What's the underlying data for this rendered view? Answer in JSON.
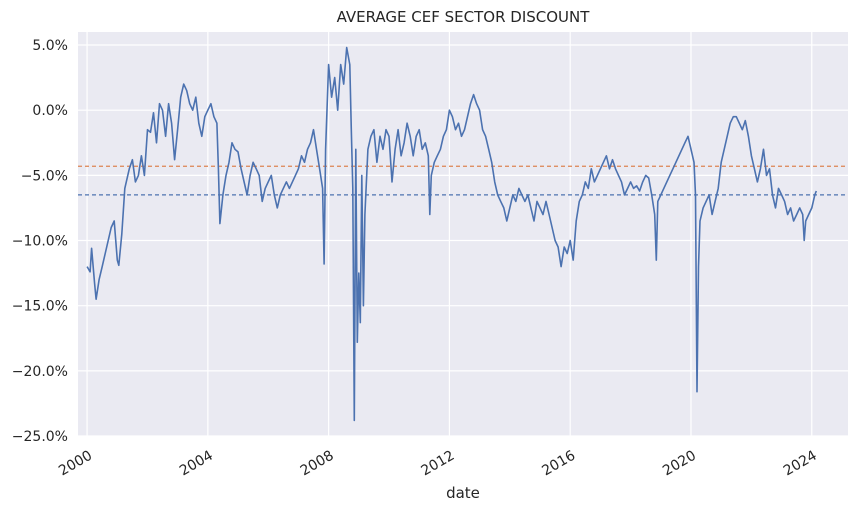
{
  "chart_data": {
    "type": "line",
    "title": "AVERAGE CEF SECTOR DISCOUNT",
    "xlabel": "date",
    "ylabel": "",
    "x_tick_labels": [
      "2000",
      "2004",
      "2008",
      "2012",
      "2016",
      "2020",
      "2024"
    ],
    "y_tick_labels": [
      "5.0%",
      "0.0%",
      "−5.0%",
      "−10.0%",
      "−15.0%",
      "−20.0%",
      "−25.0%"
    ],
    "y_ticks": [
      5,
      0,
      -5,
      -10,
      -15,
      -20,
      -25
    ],
    "xlim": [
      1999.7,
      2025.2
    ],
    "ylim": [
      -25,
      6
    ],
    "grid": true,
    "background_color": "#eaeaf2",
    "series": [
      {
        "color": "#4c72b0",
        "points": [
          [
            2000.0,
            -12.0
          ],
          [
            2000.1,
            -12.4
          ],
          [
            2000.15,
            -10.6
          ],
          [
            2000.25,
            -13.3
          ],
          [
            2000.3,
            -14.5
          ],
          [
            2000.4,
            -13.0
          ],
          [
            2000.5,
            -12.0
          ],
          [
            2000.6,
            -11.0
          ],
          [
            2000.7,
            -10.0
          ],
          [
            2000.8,
            -9.0
          ],
          [
            2000.9,
            -8.5
          ],
          [
            2001.0,
            -11.5
          ],
          [
            2001.05,
            -11.9
          ],
          [
            2001.15,
            -9.5
          ],
          [
            2001.25,
            -6.0
          ],
          [
            2001.4,
            -4.5
          ],
          [
            2001.5,
            -3.8
          ],
          [
            2001.6,
            -5.5
          ],
          [
            2001.7,
            -5.0
          ],
          [
            2001.8,
            -3.5
          ],
          [
            2001.9,
            -5.0
          ],
          [
            2002.0,
            -1.5
          ],
          [
            2002.1,
            -1.7
          ],
          [
            2002.2,
            -0.2
          ],
          [
            2002.3,
            -2.5
          ],
          [
            2002.4,
            0.5
          ],
          [
            2002.5,
            0.0
          ],
          [
            2002.6,
            -2.0
          ],
          [
            2002.7,
            0.5
          ],
          [
            2002.8,
            -1.0
          ],
          [
            2002.9,
            -3.8
          ],
          [
            2003.0,
            -1.5
          ],
          [
            2003.1,
            1.0
          ],
          [
            2003.2,
            2.0
          ],
          [
            2003.3,
            1.5
          ],
          [
            2003.4,
            0.5
          ],
          [
            2003.5,
            0.0
          ],
          [
            2003.6,
            1.0
          ],
          [
            2003.7,
            -1.0
          ],
          [
            2003.8,
            -2.0
          ],
          [
            2003.9,
            -0.5
          ],
          [
            2004.0,
            0.0
          ],
          [
            2004.1,
            0.5
          ],
          [
            2004.2,
            -0.5
          ],
          [
            2004.3,
            -1.0
          ],
          [
            2004.35,
            -4.5
          ],
          [
            2004.4,
            -8.7
          ],
          [
            2004.5,
            -6.5
          ],
          [
            2004.6,
            -5.0
          ],
          [
            2004.7,
            -4.0
          ],
          [
            2004.8,
            -2.5
          ],
          [
            2004.9,
            -3.0
          ],
          [
            2005.0,
            -3.2
          ],
          [
            2005.1,
            -4.5
          ],
          [
            2005.2,
            -5.5
          ],
          [
            2005.3,
            -6.5
          ],
          [
            2005.4,
            -5.0
          ],
          [
            2005.5,
            -4.0
          ],
          [
            2005.6,
            -4.5
          ],
          [
            2005.7,
            -5.0
          ],
          [
            2005.8,
            -7.0
          ],
          [
            2005.9,
            -6.0
          ],
          [
            2006.0,
            -5.5
          ],
          [
            2006.1,
            -5.0
          ],
          [
            2006.2,
            -6.5
          ],
          [
            2006.3,
            -7.5
          ],
          [
            2006.4,
            -6.5
          ],
          [
            2006.5,
            -6.0
          ],
          [
            2006.6,
            -5.5
          ],
          [
            2006.7,
            -6.0
          ],
          [
            2006.8,
            -5.5
          ],
          [
            2006.9,
            -5.0
          ],
          [
            2007.0,
            -4.5
          ],
          [
            2007.1,
            -3.5
          ],
          [
            2007.2,
            -4.0
          ],
          [
            2007.3,
            -3.0
          ],
          [
            2007.4,
            -2.5
          ],
          [
            2007.5,
            -1.5
          ],
          [
            2007.6,
            -3.0
          ],
          [
            2007.7,
            -4.5
          ],
          [
            2007.8,
            -6.0
          ],
          [
            2007.85,
            -11.8
          ],
          [
            2007.9,
            -3.0
          ],
          [
            2008.0,
            3.5
          ],
          [
            2008.1,
            1.0
          ],
          [
            2008.2,
            2.5
          ],
          [
            2008.3,
            0.0
          ],
          [
            2008.4,
            3.5
          ],
          [
            2008.5,
            2.0
          ],
          [
            2008.6,
            4.8
          ],
          [
            2008.7,
            3.5
          ],
          [
            2008.75,
            -1.5
          ],
          [
            2008.8,
            -6.0
          ],
          [
            2008.85,
            -23.8
          ],
          [
            2008.9,
            -3.0
          ],
          [
            2008.95,
            -17.8
          ],
          [
            2009.0,
            -12.5
          ],
          [
            2009.05,
            -16.3
          ],
          [
            2009.1,
            -5.0
          ],
          [
            2009.15,
            -15.0
          ],
          [
            2009.2,
            -8.0
          ],
          [
            2009.3,
            -3.0
          ],
          [
            2009.4,
            -2.0
          ],
          [
            2009.5,
            -1.5
          ],
          [
            2009.6,
            -4.0
          ],
          [
            2009.7,
            -2.0
          ],
          [
            2009.8,
            -3.0
          ],
          [
            2009.9,
            -1.5
          ],
          [
            2010.0,
            -2.0
          ],
          [
            2010.1,
            -5.5
          ],
          [
            2010.2,
            -3.0
          ],
          [
            2010.3,
            -1.5
          ],
          [
            2010.4,
            -3.5
          ],
          [
            2010.5,
            -2.5
          ],
          [
            2010.6,
            -1.0
          ],
          [
            2010.7,
            -2.0
          ],
          [
            2010.8,
            -3.5
          ],
          [
            2010.9,
            -2.0
          ],
          [
            2011.0,
            -1.5
          ],
          [
            2011.1,
            -3.0
          ],
          [
            2011.2,
            -2.5
          ],
          [
            2011.3,
            -3.5
          ],
          [
            2011.35,
            -8.0
          ],
          [
            2011.4,
            -5.0
          ],
          [
            2011.5,
            -4.0
          ],
          [
            2011.6,
            -3.5
          ],
          [
            2011.7,
            -3.0
          ],
          [
            2011.8,
            -2.0
          ],
          [
            2011.9,
            -1.5
          ],
          [
            2012.0,
            0.0
          ],
          [
            2012.1,
            -0.5
          ],
          [
            2012.2,
            -1.5
          ],
          [
            2012.3,
            -1.0
          ],
          [
            2012.4,
            -2.0
          ],
          [
            2012.5,
            -1.5
          ],
          [
            2012.6,
            -0.5
          ],
          [
            2012.7,
            0.5
          ],
          [
            2012.8,
            1.2
          ],
          [
            2012.9,
            0.5
          ],
          [
            2013.0,
            0.0
          ],
          [
            2013.1,
            -1.5
          ],
          [
            2013.2,
            -2.0
          ],
          [
            2013.3,
            -3.0
          ],
          [
            2013.4,
            -4.0
          ],
          [
            2013.5,
            -5.5
          ],
          [
            2013.6,
            -6.5
          ],
          [
            2013.7,
            -7.0
          ],
          [
            2013.8,
            -7.5
          ],
          [
            2013.9,
            -8.5
          ],
          [
            2014.0,
            -7.5
          ],
          [
            2014.1,
            -6.5
          ],
          [
            2014.2,
            -7.0
          ],
          [
            2014.3,
            -6.0
          ],
          [
            2014.4,
            -6.5
          ],
          [
            2014.5,
            -7.0
          ],
          [
            2014.6,
            -6.5
          ],
          [
            2014.7,
            -7.5
          ],
          [
            2014.8,
            -8.5
          ],
          [
            2014.9,
            -7.0
          ],
          [
            2015.0,
            -7.5
          ],
          [
            2015.1,
            -8.0
          ],
          [
            2015.2,
            -7.0
          ],
          [
            2015.3,
            -8.0
          ],
          [
            2015.4,
            -9.0
          ],
          [
            2015.5,
            -10.0
          ],
          [
            2015.6,
            -10.5
          ],
          [
            2015.7,
            -12.0
          ],
          [
            2015.8,
            -10.5
          ],
          [
            2015.9,
            -11.0
          ],
          [
            2016.0,
            -10.0
          ],
          [
            2016.1,
            -11.5
          ],
          [
            2016.2,
            -8.5
          ],
          [
            2016.3,
            -7.0
          ],
          [
            2016.4,
            -6.5
          ],
          [
            2016.5,
            -5.5
          ],
          [
            2016.6,
            -6.0
          ],
          [
            2016.7,
            -4.5
          ],
          [
            2016.8,
            -5.5
          ],
          [
            2016.9,
            -5.0
          ],
          [
            2017.0,
            -4.5
          ],
          [
            2017.1,
            -4.0
          ],
          [
            2017.2,
            -3.5
          ],
          [
            2017.3,
            -4.5
          ],
          [
            2017.4,
            -3.8
          ],
          [
            2017.5,
            -4.5
          ],
          [
            2017.6,
            -5.0
          ],
          [
            2017.7,
            -5.5
          ],
          [
            2017.8,
            -6.5
          ],
          [
            2017.9,
            -6.0
          ],
          [
            2018.0,
            -5.5
          ],
          [
            2018.1,
            -6.0
          ],
          [
            2018.2,
            -5.8
          ],
          [
            2018.3,
            -6.2
          ],
          [
            2018.4,
            -5.5
          ],
          [
            2018.5,
            -5.0
          ],
          [
            2018.6,
            -5.2
          ],
          [
            2018.7,
            -6.5
          ],
          [
            2018.8,
            -8.0
          ],
          [
            2018.85,
            -11.5
          ],
          [
            2018.9,
            -7.0
          ],
          [
            2019.0,
            -6.5
          ],
          [
            2019.1,
            -6.0
          ],
          [
            2019.2,
            -5.5
          ],
          [
            2019.3,
            -5.0
          ],
          [
            2019.4,
            -4.5
          ],
          [
            2019.5,
            -4.0
          ],
          [
            2019.6,
            -3.5
          ],
          [
            2019.7,
            -3.0
          ],
          [
            2019.8,
            -2.5
          ],
          [
            2019.9,
            -2.0
          ],
          [
            2020.0,
            -3.0
          ],
          [
            2020.1,
            -4.0
          ],
          [
            2020.15,
            -6.5
          ],
          [
            2020.2,
            -21.6
          ],
          [
            2020.25,
            -12.0
          ],
          [
            2020.3,
            -8.5
          ],
          [
            2020.4,
            -7.5
          ],
          [
            2020.5,
            -7.0
          ],
          [
            2020.6,
            -6.5
          ],
          [
            2020.7,
            -8.0
          ],
          [
            2020.8,
            -7.0
          ],
          [
            2020.9,
            -6.0
          ],
          [
            2021.0,
            -4.0
          ],
          [
            2021.1,
            -3.0
          ],
          [
            2021.2,
            -2.0
          ],
          [
            2021.3,
            -1.0
          ],
          [
            2021.4,
            -0.5
          ],
          [
            2021.5,
            -0.5
          ],
          [
            2021.6,
            -1.0
          ],
          [
            2021.7,
            -1.5
          ],
          [
            2021.8,
            -0.8
          ],
          [
            2021.9,
            -2.0
          ],
          [
            2022.0,
            -3.5
          ],
          [
            2022.1,
            -4.5
          ],
          [
            2022.2,
            -5.5
          ],
          [
            2022.3,
            -4.5
          ],
          [
            2022.4,
            -3.0
          ],
          [
            2022.5,
            -5.0
          ],
          [
            2022.6,
            -4.5
          ],
          [
            2022.7,
            -6.5
          ],
          [
            2022.8,
            -7.5
          ],
          [
            2022.9,
            -6.0
          ],
          [
            2023.0,
            -6.5
          ],
          [
            2023.1,
            -7.0
          ],
          [
            2023.2,
            -8.0
          ],
          [
            2023.3,
            -7.5
          ],
          [
            2023.4,
            -8.5
          ],
          [
            2023.5,
            -8.0
          ],
          [
            2023.6,
            -7.5
          ],
          [
            2023.7,
            -8.0
          ],
          [
            2023.75,
            -10.0
          ],
          [
            2023.8,
            -8.5
          ],
          [
            2023.9,
            -8.0
          ],
          [
            2024.0,
            -7.5
          ],
          [
            2024.1,
            -6.5
          ],
          [
            2024.15,
            -6.2
          ]
        ]
      }
    ],
    "reference_lines": [
      {
        "y": -4.3,
        "color": "#dd8452",
        "style": "dashed"
      },
      {
        "y": -6.5,
        "color": "#4c72b0",
        "style": "dashed"
      }
    ]
  }
}
